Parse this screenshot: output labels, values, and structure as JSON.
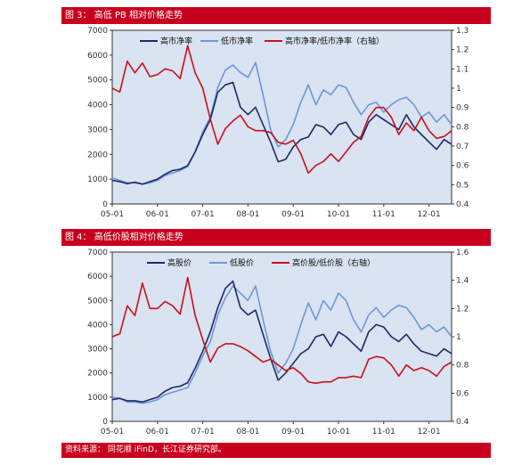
{
  "figures": [
    {
      "title": "图 3：  高低 PB 相对价格走势"
    },
    {
      "title": "图 4：  高低价股相对价格走势"
    }
  ],
  "source": "资料来源：  同花顺 iFinD，长江证券研究部。",
  "colors": {
    "bar": "#c8001e",
    "plot_bg": "#d9e3f1",
    "navy": "#1c2a66",
    "light_blue": "#6e97d8",
    "red": "#c8101e"
  },
  "chart_data": [
    {
      "type": "line",
      "title": "图 3：  高低 PB 相对价格走势",
      "x_ticks": [
        "05-01",
        "06-01",
        "07-01",
        "08-01",
        "09-01",
        "10-01",
        "11-01",
        "12-01"
      ],
      "x": [
        "05-01",
        "05-03",
        "05-05",
        "05-07",
        "05-09",
        "05-11",
        "06-01",
        "06-03",
        "06-05",
        "06-07",
        "06-09",
        "06-11",
        "07-01",
        "07-03",
        "07-05",
        "07-07",
        "07-09",
        "07-11",
        "08-01",
        "08-03",
        "08-05",
        "08-07",
        "08-09",
        "08-11",
        "09-01",
        "09-03",
        "09-05",
        "09-07",
        "09-09",
        "09-11",
        "10-01",
        "10-03",
        "10-05",
        "10-07",
        "10-09",
        "10-11",
        "11-01",
        "11-03",
        "11-05",
        "11-07",
        "11-09",
        "11-11",
        "12-01",
        "12-03",
        "12-05",
        "12-07"
      ],
      "ylim_left": [
        0,
        7000
      ],
      "ylim_right": [
        0.4,
        1.3
      ],
      "y_ticks_left": [
        "0",
        "1000",
        "2000",
        "3000",
        "4000",
        "5000",
        "6000",
        "7000"
      ],
      "y_ticks_right": [
        "0.4",
        "0.5",
        "0.6",
        "0.7",
        "0.8",
        "0.9",
        "1",
        "1.1",
        "1.2",
        "1.3"
      ],
      "series": [
        {
          "name": "高市净率",
          "axis": "left",
          "color": "#1c2a66",
          "values": [
            950,
            900,
            820,
            880,
            800,
            900,
            1000,
            1200,
            1350,
            1400,
            1550,
            2100,
            2800,
            3400,
            4500,
            4800,
            4900,
            3900,
            3600,
            3900,
            3200,
            2500,
            1700,
            1800,
            2300,
            2600,
            2700,
            3200,
            3100,
            2800,
            3200,
            3300,
            2800,
            2600,
            3300,
            3600,
            3400,
            3200,
            3000,
            3600,
            3100,
            2800,
            2500,
            2200,
            2600,
            2400
          ]
        },
        {
          "name": "低市净率",
          "axis": "left",
          "color": "#6e97d8",
          "values": [
            1050,
            950,
            850,
            850,
            800,
            850,
            950,
            1150,
            1250,
            1350,
            1500,
            2100,
            2900,
            3500,
            4700,
            5400,
            5600,
            5300,
            5100,
            5700,
            4400,
            3000,
            2300,
            2600,
            3200,
            4100,
            4800,
            4000,
            4600,
            4400,
            4800,
            4700,
            4100,
            3600,
            4000,
            4100,
            3700,
            4000,
            4200,
            4300,
            4000,
            3500,
            3700,
            3300,
            3600,
            3200
          ]
        },
        {
          "name": "高市净率/低市净率（右轴）",
          "axis": "right",
          "color": "#c8101e",
          "values": [
            1.0,
            0.98,
            1.14,
            1.08,
            1.13,
            1.06,
            1.07,
            1.1,
            1.09,
            1.05,
            1.22,
            1.08,
            1.0,
            0.84,
            0.71,
            0.79,
            0.83,
            0.86,
            0.8,
            0.78,
            0.78,
            0.77,
            0.72,
            0.71,
            0.73,
            0.66,
            0.56,
            0.6,
            0.62,
            0.66,
            0.62,
            0.67,
            0.72,
            0.75,
            0.85,
            0.9,
            0.9,
            0.85,
            0.76,
            0.82,
            0.78,
            0.85,
            0.78,
            0.74,
            0.75,
            0.78
          ]
        }
      ]
    },
    {
      "type": "line",
      "title": "图 4：  高低价股相对价格走势",
      "x_ticks": [
        "05-01",
        "06-01",
        "07-01",
        "08-01",
        "09-01",
        "10-01",
        "11-01",
        "12-01"
      ],
      "x": [
        "05-01",
        "05-03",
        "05-05",
        "05-07",
        "05-09",
        "05-11",
        "06-01",
        "06-03",
        "06-05",
        "06-07",
        "06-09",
        "06-11",
        "07-01",
        "07-03",
        "07-05",
        "07-07",
        "07-09",
        "07-11",
        "08-01",
        "08-03",
        "08-05",
        "08-07",
        "08-09",
        "08-11",
        "09-01",
        "09-03",
        "09-05",
        "09-07",
        "09-09",
        "09-11",
        "10-01",
        "10-03",
        "10-05",
        "10-07",
        "10-09",
        "10-11",
        "11-01",
        "11-03",
        "11-05",
        "11-07",
        "11-09",
        "11-11",
        "12-01",
        "12-03",
        "12-05",
        "12-07"
      ],
      "ylim_left": [
        0,
        7000
      ],
      "ylim_right": [
        0.4,
        1.6
      ],
      "y_ticks_left": [
        "0",
        "1000",
        "2000",
        "3000",
        "4000",
        "5000",
        "6000",
        "7000"
      ],
      "y_ticks_right": [
        "0.4",
        "0.6",
        "0.8",
        "1",
        "1.2",
        "1.4",
        "1.6"
      ],
      "series": [
        {
          "name": "高股价",
          "axis": "left",
          "color": "#1c2a66",
          "values": [
            900,
            950,
            850,
            850,
            800,
            900,
            1000,
            1250,
            1400,
            1450,
            1600,
            2200,
            2900,
            3700,
            4700,
            5500,
            5800,
            4700,
            4400,
            4600,
            3600,
            2600,
            1700,
            2000,
            2400,
            2800,
            3000,
            3500,
            3600,
            3100,
            3700,
            3500,
            3200,
            2900,
            3700,
            4000,
            3900,
            3500,
            3300,
            3600,
            3200,
            2900,
            2800,
            2700,
            3000,
            2800
          ]
        },
        {
          "name": "低股价",
          "axis": "left",
          "color": "#6e97d8",
          "values": [
            1000,
            950,
            800,
            800,
            750,
            800,
            900,
            1100,
            1200,
            1300,
            1400,
            2000,
            2700,
            3300,
            4400,
            5100,
            5600,
            5300,
            5000,
            5600,
            4200,
            2900,
            2000,
            2400,
            3000,
            4000,
            4900,
            4200,
            5000,
            4600,
            5300,
            5000,
            4200,
            3700,
            4400,
            4700,
            4300,
            4600,
            4800,
            4700,
            4300,
            3800,
            4000,
            3700,
            3900,
            3500
          ]
        },
        {
          "name": "高价股/低价股（右轴）",
          "axis": "right",
          "color": "#c8101e",
          "values": [
            1.0,
            1.02,
            1.22,
            1.15,
            1.38,
            1.2,
            1.2,
            1.25,
            1.22,
            1.16,
            1.42,
            1.15,
            0.98,
            0.82,
            0.92,
            0.95,
            0.95,
            0.93,
            0.9,
            0.86,
            0.82,
            0.84,
            0.8,
            0.76,
            0.78,
            0.74,
            0.68,
            0.67,
            0.68,
            0.68,
            0.71,
            0.71,
            0.72,
            0.71,
            0.84,
            0.86,
            0.85,
            0.8,
            0.72,
            0.8,
            0.76,
            0.78,
            0.76,
            0.72,
            0.79,
            0.82
          ]
        }
      ]
    }
  ]
}
